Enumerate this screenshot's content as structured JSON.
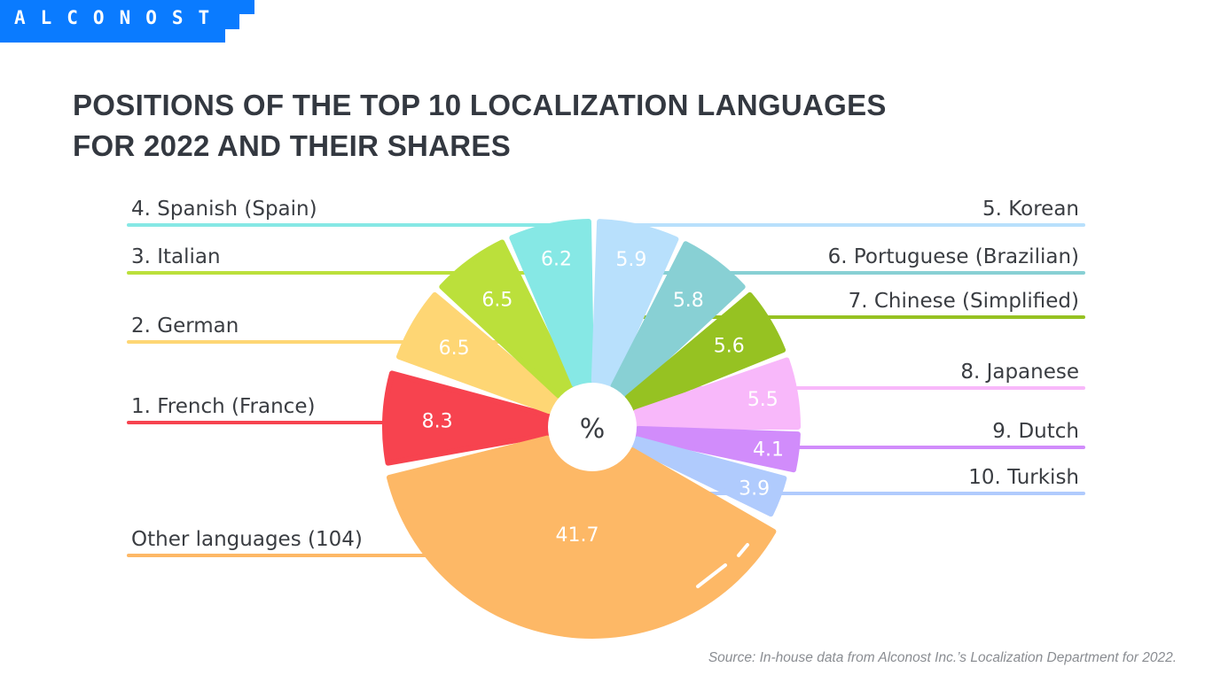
{
  "logo": {
    "text": "ALCONOST",
    "color": "#0a7bff"
  },
  "title_lines": [
    "POSITIONS OF THE TOP 10 LOCALIZATION LANGUAGES",
    "FOR 2022 AND THEIR SHARES"
  ],
  "source": "Source: In-house data from Alconost Inc.’s Localization Department for 2022.",
  "chart_data": {
    "type": "pie",
    "center_label": "%",
    "title": "POSITIONS OF THE TOP 10 LOCALIZATION LANGUAGES FOR 2022 AND THEIR SHARES",
    "unit": "%",
    "slices": [
      {
        "label": "1. French (France)",
        "value": 8.3,
        "color": "#f7434f"
      },
      {
        "label": "2. German",
        "value": 6.5,
        "color": "#fed674"
      },
      {
        "label": "3. Italian",
        "value": 6.5,
        "color": "#bbe03b"
      },
      {
        "label": "4. Spanish (Spain)",
        "value": 6.2,
        "color": "#86e8e5"
      },
      {
        "label": "5. Korean",
        "value": 5.9,
        "color": "#b8e0fc"
      },
      {
        "label": "6. Portuguese (Brazilian)",
        "value": 5.8,
        "color": "#88d0d4"
      },
      {
        "label": "7. Chinese (Simplified)",
        "value": 5.6,
        "color": "#96c222"
      },
      {
        "label": "8. Japanese",
        "value": 5.5,
        "color": "#f8b8fa"
      },
      {
        "label": "9. Dutch",
        "value": 4.1,
        "color": "#d18cfb"
      },
      {
        "label": "10. Turkish",
        "value": 3.9,
        "color": "#b0cbfd"
      },
      {
        "label": "Other languages (104)",
        "value": 41.7,
        "color": "#fdb866"
      }
    ]
  }
}
